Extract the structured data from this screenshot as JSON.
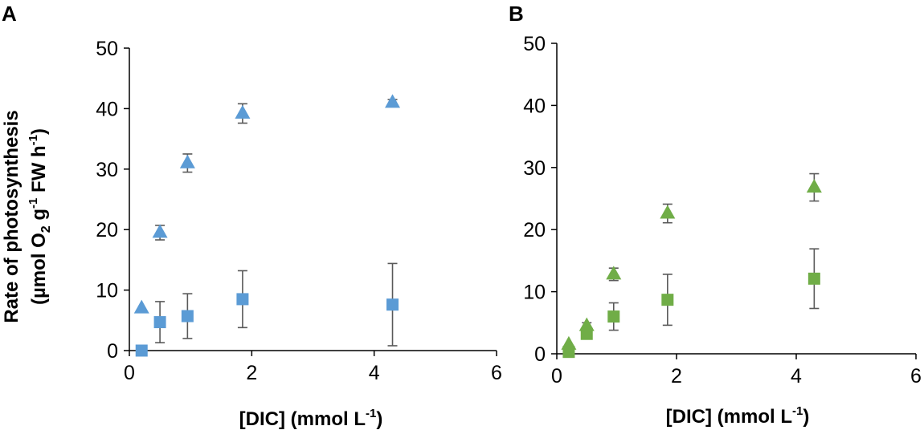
{
  "ylabel_line1": "Rate of photosynthesis",
  "ylabel_line2": {
    "a": "(µmol O",
    "b": "2",
    "c": " g",
    "d": "-1",
    "e": " FW h",
    "f": "-1",
    "g": ")"
  },
  "xlabel": {
    "a": "[DIC] (mmol L",
    "b": "-1",
    "c": ")"
  },
  "colors": {
    "axis": "#000000",
    "error": "#595959"
  },
  "chart_data": [
    {
      "type": "scatter",
      "panel": "A",
      "xlim": [
        0,
        6
      ],
      "ylim": [
        0,
        50
      ],
      "xticks": [
        0,
        2,
        4,
        6
      ],
      "yticks": [
        0,
        10,
        20,
        30,
        40,
        50
      ],
      "color": "#5b9bd5",
      "series": [
        {
          "name": "triangle",
          "marker": "triangle",
          "x": [
            0.2,
            0.5,
            0.95,
            1.85,
            4.3
          ],
          "y": [
            7,
            19.5,
            31,
            39.2,
            41
          ],
          "err": [
            0,
            1.2,
            1.5,
            1.6,
            0.5
          ]
        },
        {
          "name": "square",
          "marker": "square",
          "x": [
            0.2,
            0.5,
            0.95,
            1.85,
            4.3
          ],
          "y": [
            0,
            4.7,
            5.7,
            8.5,
            7.6
          ],
          "err": [
            0,
            3.4,
            3.7,
            4.7,
            6.8
          ]
        }
      ]
    },
    {
      "type": "scatter",
      "panel": "B",
      "xlim": [
        0,
        6
      ],
      "ylim": [
        0,
        50
      ],
      "xticks": [
        0,
        2,
        4,
        6
      ],
      "yticks": [
        0,
        10,
        20,
        30,
        40,
        50
      ],
      "color": "#70ad47",
      "series": [
        {
          "name": "triangle",
          "marker": "triangle",
          "x": [
            0.2,
            0.5,
            0.95,
            1.85,
            4.3
          ],
          "y": [
            1.5,
            4.5,
            12.8,
            22.6,
            26.8
          ],
          "err": [
            0,
            0.5,
            1,
            1.5,
            2.2
          ]
        },
        {
          "name": "square",
          "marker": "square",
          "x": [
            0.2,
            0.5,
            0.95,
            1.85,
            4.3
          ],
          "y": [
            0.3,
            3.2,
            6,
            8.7,
            12.1
          ],
          "err": [
            0,
            0.4,
            2.2,
            4.1,
            4.8
          ]
        }
      ]
    }
  ]
}
